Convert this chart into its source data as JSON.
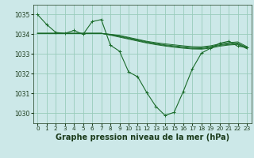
{
  "background_color": "#cce8e8",
  "plot_bg_color": "#cce8e8",
  "grid_color": "#99ccbb",
  "line_color": "#1a6b2a",
  "marker_color": "#1a6b2a",
  "title": "Graphe pression niveau de la mer (hPa)",
  "title_fontsize": 7,
  "xlim": [
    -0.5,
    23.5
  ],
  "ylim": [
    1029.5,
    1035.5
  ],
  "yticks": [
    1030,
    1031,
    1032,
    1033,
    1034,
    1035
  ],
  "xticks": [
    0,
    1,
    2,
    3,
    4,
    5,
    6,
    7,
    8,
    9,
    10,
    11,
    12,
    13,
    14,
    15,
    16,
    17,
    18,
    19,
    20,
    21,
    22,
    23
  ],
  "series_main": [
    1035.0,
    1034.5,
    1034.1,
    1034.05,
    1034.2,
    1034.0,
    1034.65,
    1034.75,
    1033.45,
    1033.15,
    1032.1,
    1031.85,
    1031.05,
    1030.35,
    1029.9,
    1030.05,
    1031.1,
    1032.25,
    1033.05,
    1033.3,
    1033.55,
    1033.65,
    1033.4,
    1033.35
  ],
  "series_flat": [
    [
      1034.05,
      1034.05,
      1034.05,
      1034.05,
      1034.05,
      1034.05,
      1034.05,
      1034.05,
      1034.0,
      1033.95,
      1033.85,
      1033.75,
      1033.65,
      1033.58,
      1033.52,
      1033.47,
      1033.42,
      1033.38,
      1033.37,
      1033.42,
      1033.52,
      1033.58,
      1033.62,
      1033.38
    ],
    [
      1034.05,
      1034.05,
      1034.05,
      1034.05,
      1034.05,
      1034.05,
      1034.05,
      1034.05,
      1034.0,
      1033.92,
      1033.82,
      1033.72,
      1033.62,
      1033.54,
      1033.47,
      1033.42,
      1033.37,
      1033.33,
      1033.32,
      1033.38,
      1033.47,
      1033.53,
      1033.56,
      1033.34
    ],
    [
      1034.05,
      1034.05,
      1034.05,
      1034.05,
      1034.05,
      1034.05,
      1034.05,
      1034.05,
      1033.98,
      1033.89,
      1033.79,
      1033.69,
      1033.59,
      1033.51,
      1033.44,
      1033.38,
      1033.34,
      1033.29,
      1033.28,
      1033.34,
      1033.44,
      1033.49,
      1033.52,
      1033.3
    ],
    [
      1034.05,
      1034.05,
      1034.05,
      1034.05,
      1034.05,
      1034.05,
      1034.05,
      1034.05,
      1033.96,
      1033.86,
      1033.76,
      1033.66,
      1033.56,
      1033.48,
      1033.41,
      1033.35,
      1033.3,
      1033.26,
      1033.25,
      1033.3,
      1033.4,
      1033.46,
      1033.49,
      1033.27
    ]
  ]
}
